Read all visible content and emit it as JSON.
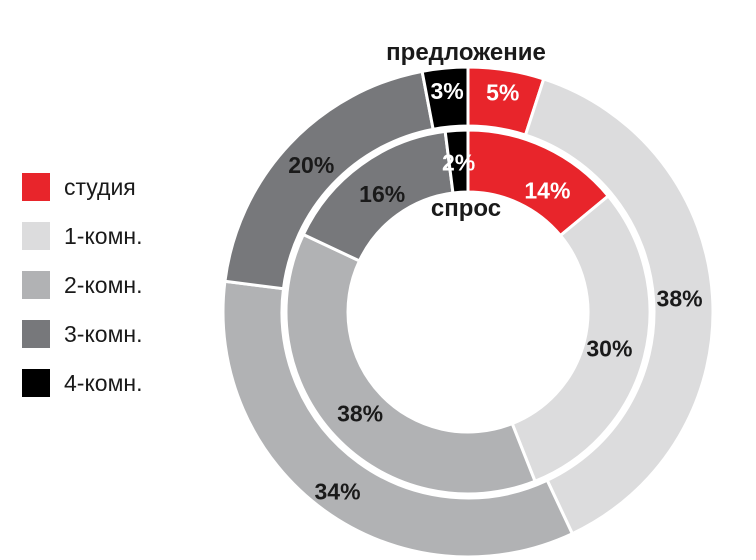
{
  "chart_data": {
    "type": "pie",
    "style": "nested-donut",
    "categories": [
      "студия",
      "1-комн.",
      "2-комн.",
      "3-комн.",
      "4-комн."
    ],
    "colors": [
      "#e8252b",
      "#dcdcdd",
      "#b1b2b4",
      "#77787b",
      "#000000"
    ],
    "series": [
      {
        "name": "предложение",
        "ring": "outer",
        "values": [
          5,
          38,
          34,
          20,
          3
        ],
        "labels": [
          "5%",
          "38%",
          "34%",
          "20%",
          "3%"
        ]
      },
      {
        "name": "спрос",
        "ring": "inner",
        "values": [
          14,
          30,
          38,
          16,
          2
        ],
        "labels": [
          "14%",
          "30%",
          "38%",
          "16%",
          "2%"
        ]
      }
    ],
    "legend_position": "left",
    "start_angle": "top, clockwise"
  }
}
